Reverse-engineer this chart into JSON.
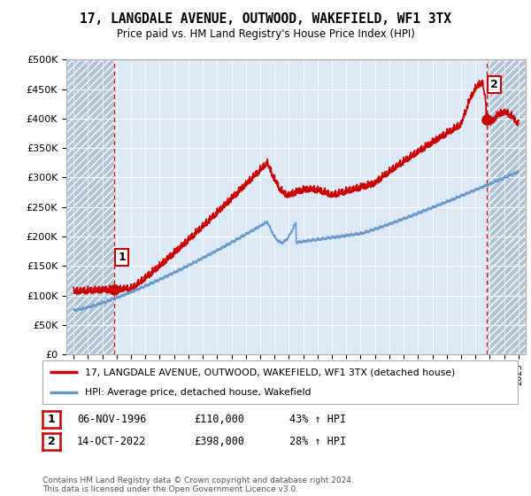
{
  "title": "17, LANGDALE AVENUE, OUTWOOD, WAKEFIELD, WF1 3TX",
  "subtitle": "Price paid vs. HM Land Registry's House Price Index (HPI)",
  "ylim": [
    0,
    500000
  ],
  "yticks": [
    0,
    50000,
    100000,
    150000,
    200000,
    250000,
    300000,
    350000,
    400000,
    450000,
    500000
  ],
  "ytick_labels": [
    "£0",
    "£50K",
    "£100K",
    "£150K",
    "£200K",
    "£250K",
    "£300K",
    "£350K",
    "£400K",
    "£450K",
    "£500K"
  ],
  "xlim_start": 1993.5,
  "xlim_end": 2025.5,
  "sale1_date": 1996.85,
  "sale1_price": 110000,
  "sale2_date": 2022.79,
  "sale2_price": 398000,
  "sale1_label": "1",
  "sale2_label": "2",
  "line_color_red": "#cc0000",
  "line_color_blue": "#6699cc",
  "vline_color": "#cc0000",
  "marker_color": "#cc0000",
  "legend_label_red": "17, LANGDALE AVENUE, OUTWOOD, WAKEFIELD, WF1 3TX (detached house)",
  "legend_label_blue": "HPI: Average price, detached house, Wakefield",
  "table_row1": [
    "1",
    "06-NOV-1996",
    "£110,000",
    "43% ↑ HPI"
  ],
  "table_row2": [
    "2",
    "14-OCT-2022",
    "£398,000",
    "28% ↑ HPI"
  ],
  "footer": "Contains HM Land Registry data © Crown copyright and database right 2024.\nThis data is licensed under the Open Government Licence v3.0.",
  "background_color": "#ffffff",
  "plot_bg_color": "#dce8f5",
  "grid_color": "#ffffff",
  "hatch_color": "#b0c4d8"
}
